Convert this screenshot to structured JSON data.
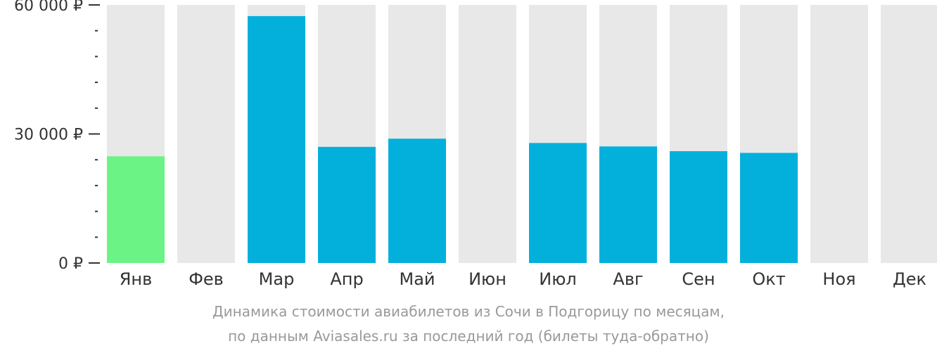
{
  "chart_data": {
    "type": "bar",
    "currency": "₽",
    "categories": [
      "Янв",
      "Фев",
      "Мар",
      "Апр",
      "Май",
      "Июн",
      "Июл",
      "Авг",
      "Сен",
      "Окт",
      "Ноя",
      "Дек"
    ],
    "values": [
      24800,
      null,
      57400,
      27000,
      28900,
      null,
      27900,
      27100,
      26000,
      25600,
      null,
      null
    ],
    "highlight_index": 0,
    "ylim": [
      0,
      60000
    ],
    "y_ticks": [
      {
        "value": 60000,
        "label": "60 000 ₽"
      },
      {
        "value": 30000,
        "label": "30 000 ₽"
      },
      {
        "value": 0,
        "label": "0 ₽"
      }
    ],
    "minor_tick_step": 6000,
    "colors": {
      "bar": "#03b0dc",
      "highlight": "#6cf385",
      "background_bar": "#e8e8e8",
      "axis": "#333333"
    }
  },
  "caption": {
    "line1": "Динамика стоимости авиабилетов из Сочи в Подгорицу по месяцам,",
    "line2": "по данным Aviasales.ru за последний год (билеты туда-обратно)"
  }
}
